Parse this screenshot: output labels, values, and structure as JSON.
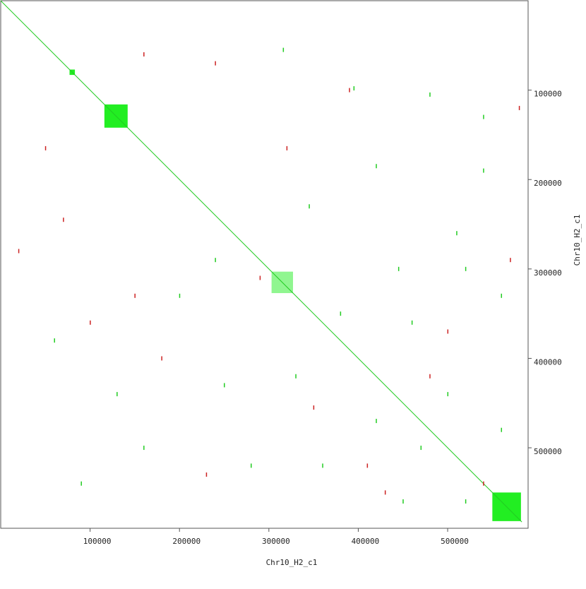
{
  "chart_data": {
    "type": "dotplot",
    "x_label": "Chr10_H2_c1",
    "y_label": "Chr10_H2_c1",
    "xlim": [
      0,
      590000
    ],
    "ylim": [
      0,
      590000
    ],
    "xticks": [
      100000,
      200000,
      300000,
      400000,
      500000
    ],
    "yticks": [
      100000,
      200000,
      300000,
      400000,
      500000
    ],
    "diagonal": {
      "color": "#22cc22",
      "x": [
        0,
        583000
      ],
      "y": [
        0,
        583000
      ]
    },
    "blocks": {
      "color": "#22ee22",
      "x0": [
        77000,
        116000,
        303000,
        550000
      ],
      "x1": [
        83000,
        142000,
        327000,
        582000
      ],
      "y0": [
        77000,
        116000,
        303000,
        550000
      ],
      "y1": [
        83000,
        142000,
        327000,
        582000
      ]
    },
    "green_points": {
      "color": "#22cc22",
      "x": [
        316000,
        395000,
        480000,
        420000,
        540000,
        345000,
        445000,
        520000,
        380000,
        460000,
        560000,
        330000,
        420000,
        500000,
        560000,
        250000,
        280000,
        360000,
        450000,
        520000,
        160000,
        90000,
        60000,
        200000,
        540000,
        510000,
        470000,
        130000,
        240000
      ],
      "y": [
        55000,
        98000,
        105000,
        185000,
        190000,
        230000,
        300000,
        300000,
        350000,
        360000,
        330000,
        420000,
        470000,
        440000,
        480000,
        430000,
        520000,
        520000,
        560000,
        560000,
        500000,
        540000,
        380000,
        330000,
        130000,
        260000,
        500000,
        440000,
        290000
      ]
    },
    "red_points": {
      "color": "#cc2222",
      "x": [
        160000,
        240000,
        50000,
        320000,
        390000,
        580000,
        100000,
        180000,
        350000,
        410000,
        480000,
        230000,
        430000,
        540000,
        70000,
        20000,
        570000,
        290000,
        500000,
        150000
      ],
      "y": [
        60000,
        70000,
        165000,
        165000,
        100000,
        120000,
        360000,
        400000,
        455000,
        520000,
        420000,
        530000,
        550000,
        540000,
        245000,
        280000,
        290000,
        310000,
        370000,
        330000
      ]
    }
  }
}
